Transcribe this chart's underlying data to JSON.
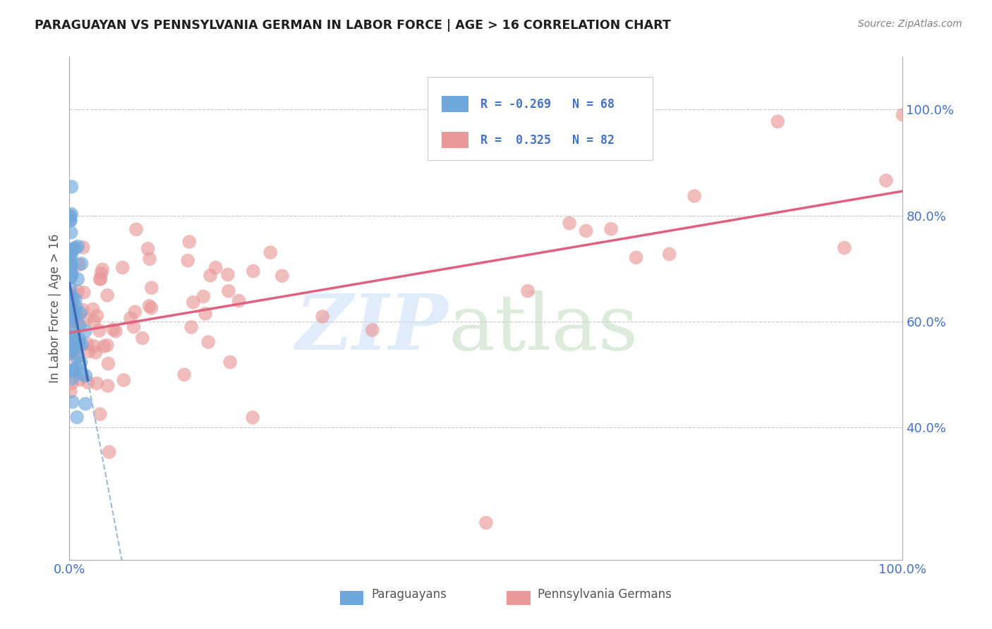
{
  "title": "PARAGUAYAN VS PENNSYLVANIA GERMAN IN LABOR FORCE | AGE > 16 CORRELATION CHART",
  "source": "Source: ZipAtlas.com",
  "ylabel": "In Labor Force | Age > 16",
  "blue_color": "#6fa8dc",
  "pink_color": "#ea9999",
  "blue_line_color": "#3d6bb5",
  "pink_line_color": "#e06080",
  "watermark_zip": "ZIP",
  "watermark_atlas": "atlas",
  "background_color": "#ffffff",
  "grid_color": "#c8c8c8",
  "tick_color": "#4472c4",
  "title_color": "#1f1f1f",
  "source_color": "#808080",
  "legend_text_color": "#4472c4",
  "ylabel_color": "#555555",
  "xlim": [
    0.0,
    1.0
  ],
  "ylim": [
    0.15,
    1.1
  ],
  "ytick_vals": [
    0.4,
    0.6,
    0.8,
    1.0
  ],
  "ytick_labels": [
    "40.0%",
    "60.0%",
    "80.0%",
    "100.0%"
  ],
  "xtick_vals": [
    0.0,
    1.0
  ],
  "xtick_labels": [
    "0.0%",
    "100.0%"
  ]
}
